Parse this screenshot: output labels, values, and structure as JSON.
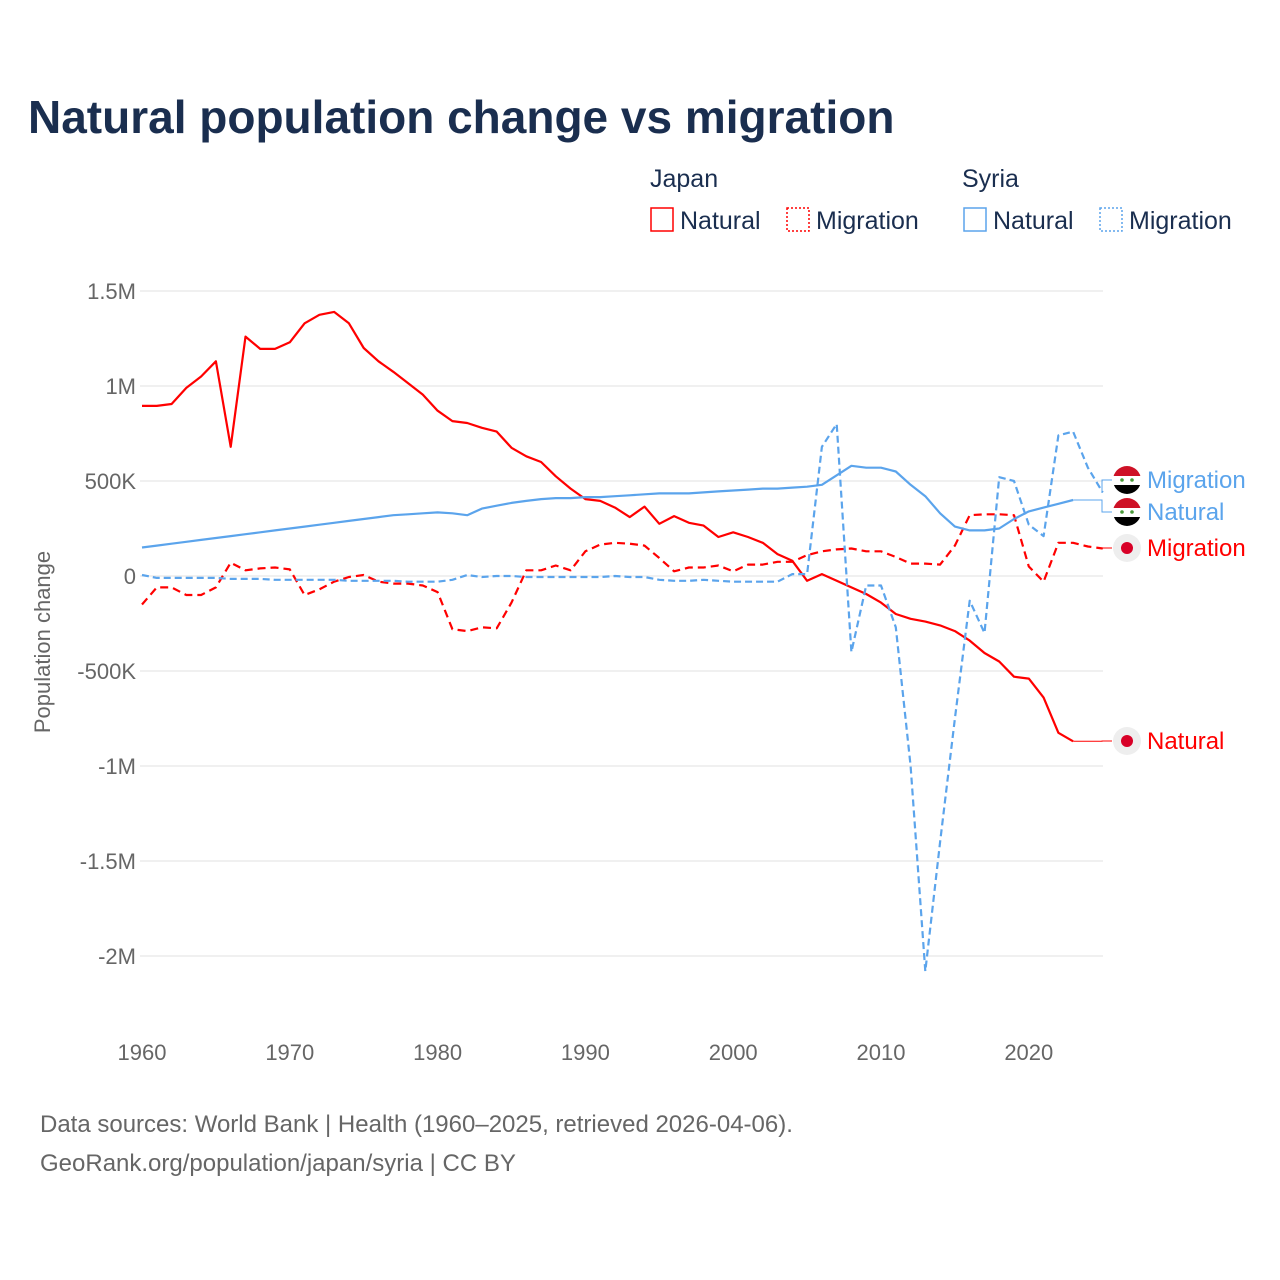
{
  "title": "Natural population change vs migration",
  "legend": {
    "groups": [
      {
        "name": "Japan",
        "items": [
          "Natural",
          "Migration"
        ],
        "color": "#ff0000"
      },
      {
        "name": "Syria",
        "items": [
          "Natural",
          "Migration"
        ],
        "color": "#5ba4ec"
      }
    ]
  },
  "source_line1": "Data sources: World Bank | Health (1960–2025, retrieved 2026-04-06).",
  "source_line2": "GeoRank.org/population/japan/syria | CC BY",
  "chart_data": {
    "type": "line",
    "title": "Natural population change vs migration",
    "xlabel": "",
    "ylabel": "Population change",
    "xlim": [
      1960,
      2025
    ],
    "ylim": [
      -2000000,
      1500000
    ],
    "grid": true,
    "legend_position": "top-right",
    "x_ticks": [
      1960,
      1970,
      1980,
      1990,
      2000,
      2010,
      2020
    ],
    "x_tick_labels": [
      "1960",
      "1970",
      "1980",
      "1990",
      "2000",
      "2010",
      "2020"
    ],
    "y_ticks": [
      1500000,
      1000000,
      500000,
      0,
      -500000,
      -1000000,
      -1500000,
      -2000000
    ],
    "y_tick_labels": [
      "1.5M",
      "1M",
      "500K",
      "0",
      "-500K",
      "-1M",
      "-1.5M",
      "-2M"
    ],
    "series": [
      {
        "name": "Japan Natural",
        "label": "Natural",
        "country": "Japan",
        "color": "#ff0000",
        "dashed": false,
        "start": 1960,
        "values_millions": [
          0.895,
          0.895,
          0.905,
          0.99,
          1.05,
          1.13,
          0.68,
          1.26,
          1.195,
          1.195,
          1.23,
          1.33,
          1.375,
          1.39,
          1.33,
          1.2,
          1.13,
          1.075,
          1.015,
          0.955,
          0.87,
          0.815,
          0.805,
          0.78,
          0.76,
          0.675,
          0.63,
          0.6,
          0.525,
          0.46,
          0.405,
          0.395,
          0.36,
          0.31,
          0.365,
          0.275,
          0.315,
          0.28,
          0.265,
          0.205,
          0.23,
          0.205,
          0.175,
          0.115,
          0.08,
          -0.025,
          0.01,
          -0.025,
          -0.06,
          -0.095,
          -0.14,
          -0.2,
          -0.225,
          -0.24,
          -0.26,
          -0.29,
          -0.34,
          -0.405,
          -0.45,
          -0.53,
          -0.54,
          -0.64,
          -0.825,
          -0.87
        ]
      },
      {
        "name": "Japan Migration",
        "label": "Migration",
        "country": "Japan",
        "color": "#ff0000",
        "dashed": true,
        "start": 1960,
        "values_millions": [
          -0.15,
          -0.06,
          -0.06,
          -0.1,
          -0.1,
          -0.06,
          0.07,
          0.03,
          0.04,
          0.045,
          0.035,
          -0.1,
          -0.07,
          -0.03,
          -0.005,
          0.005,
          -0.03,
          -0.04,
          -0.04,
          -0.05,
          -0.085,
          -0.28,
          -0.29,
          -0.27,
          -0.275,
          -0.14,
          0.03,
          0.03,
          0.055,
          0.03,
          0.13,
          0.165,
          0.175,
          0.17,
          0.16,
          0.095,
          0.025,
          0.045,
          0.045,
          0.055,
          0.025,
          0.06,
          0.06,
          0.075,
          0.075,
          0.11,
          0.13,
          0.14,
          0.145,
          0.13,
          0.13,
          0.1,
          0.065,
          0.065,
          0.06,
          0.16,
          0.32,
          0.325,
          0.325,
          0.32,
          0.05,
          -0.03,
          0.175,
          0.175,
          0.155,
          0.145
        ]
      },
      {
        "name": "Syria Natural",
        "label": "Natural",
        "country": "Syria",
        "color": "#5ba4ec",
        "dashed": false,
        "start": 1960,
        "values_millions": [
          0.15,
          0.16,
          0.17,
          0.18,
          0.19,
          0.2,
          0.21,
          0.22,
          0.23,
          0.24,
          0.25,
          0.26,
          0.27,
          0.28,
          0.29,
          0.3,
          0.31,
          0.32,
          0.325,
          0.33,
          0.335,
          0.33,
          0.32,
          0.355,
          0.37,
          0.385,
          0.395,
          0.405,
          0.41,
          0.41,
          0.415,
          0.415,
          0.42,
          0.425,
          0.43,
          0.435,
          0.435,
          0.435,
          0.44,
          0.445,
          0.45,
          0.455,
          0.46,
          0.46,
          0.465,
          0.47,
          0.48,
          0.53,
          0.58,
          0.57,
          0.57,
          0.55,
          0.48,
          0.42,
          0.33,
          0.26,
          0.24,
          0.24,
          0.25,
          0.3,
          0.34,
          0.36,
          0.38,
          0.4
        ]
      },
      {
        "name": "Syria Migration",
        "label": "Migration",
        "country": "Syria",
        "color": "#5ba4ec",
        "dashed": true,
        "start": 1960,
        "values_millions": [
          0.005,
          -0.01,
          -0.01,
          -0.01,
          -0.01,
          -0.01,
          -0.015,
          -0.015,
          -0.015,
          -0.02,
          -0.02,
          -0.02,
          -0.02,
          -0.02,
          -0.025,
          -0.025,
          -0.025,
          -0.025,
          -0.03,
          -0.03,
          -0.03,
          -0.02,
          0.005,
          -0.005,
          0.0,
          0.0,
          -0.005,
          -0.005,
          -0.005,
          -0.005,
          -0.005,
          -0.005,
          0.0,
          -0.005,
          -0.005,
          -0.02,
          -0.025,
          -0.025,
          -0.02,
          -0.025,
          -0.03,
          -0.03,
          -0.03,
          -0.03,
          0.01,
          0.01,
          0.68,
          0.8,
          -0.4,
          -0.05,
          -0.05,
          -0.27,
          -1.0,
          -2.08,
          -1.4,
          -0.75,
          -0.13,
          -0.3,
          0.52,
          0.5,
          0.27,
          0.21,
          0.74,
          0.76,
          0.57,
          0.44
        ]
      }
    ],
    "end_labels": [
      {
        "series": "Syria Migration",
        "text": "Migration",
        "color": "#5ba4ec",
        "flag": "syria"
      },
      {
        "series": "Syria Natural",
        "text": "Natural",
        "color": "#5ba4ec",
        "flag": "syria"
      },
      {
        "series": "Japan Migration",
        "text": "Migration",
        "color": "#ff0000",
        "flag": "japan"
      },
      {
        "series": "Japan Natural",
        "text": "Natural",
        "color": "#ff0000",
        "flag": "japan"
      }
    ]
  }
}
